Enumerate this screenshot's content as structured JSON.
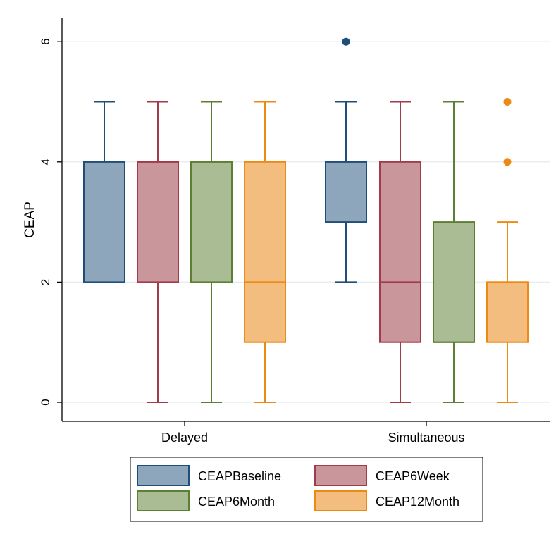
{
  "chart_data": {
    "type": "box",
    "title": "",
    "xlabel": "",
    "ylabel": "CEAP",
    "ylim": [
      0,
      6
    ],
    "yticks": [
      0,
      2,
      4,
      6
    ],
    "grid": true,
    "legend_position": "bottom",
    "groups": [
      "Delayed",
      "Simultaneous"
    ],
    "series": [
      {
        "name": "CEAPBaseline",
        "fill": "#8ea6bb",
        "stroke": "#1f4e79",
        "boxes": [
          {
            "group": "Delayed",
            "whisker_low": 2,
            "q1": 2,
            "median": 4,
            "q3": 4,
            "whisker_high": 5,
            "outliers": []
          },
          {
            "group": "Simultaneous",
            "whisker_low": 2,
            "q1": 3,
            "median": 4,
            "q3": 4,
            "whisker_high": 5,
            "outliers": [
              6
            ]
          }
        ]
      },
      {
        "name": "CEAP6Week",
        "fill": "#c9969b",
        "stroke": "#a33a48",
        "boxes": [
          {
            "group": "Delayed",
            "whisker_low": 0,
            "q1": 2,
            "median": 4,
            "q3": 4,
            "whisker_high": 5,
            "outliers": []
          },
          {
            "group": "Simultaneous",
            "whisker_low": 0,
            "q1": 1,
            "median": 2,
            "q3": 4,
            "whisker_high": 5,
            "outliers": []
          }
        ]
      },
      {
        "name": "CEAP6Month",
        "fill": "#a9bc94",
        "stroke": "#5c7f33",
        "boxes": [
          {
            "group": "Delayed",
            "whisker_low": 0,
            "q1": 2,
            "median": 4,
            "q3": 4,
            "whisker_high": 5,
            "outliers": []
          },
          {
            "group": "Simultaneous",
            "whisker_low": 0,
            "q1": 1,
            "median": 1,
            "q3": 3,
            "whisker_high": 5,
            "outliers": []
          }
        ]
      },
      {
        "name": "CEAP12Month",
        "fill": "#f2bd7f",
        "stroke": "#ec8a12",
        "boxes": [
          {
            "group": "Delayed",
            "whisker_low": 0,
            "q1": 1,
            "median": 2,
            "q3": 4,
            "whisker_high": 5,
            "outliers": []
          },
          {
            "group": "Simultaneous",
            "whisker_low": 0,
            "q1": 1,
            "median": 2,
            "q3": 2,
            "whisker_high": 3,
            "outliers": [
              4,
              5
            ]
          }
        ]
      }
    ]
  }
}
